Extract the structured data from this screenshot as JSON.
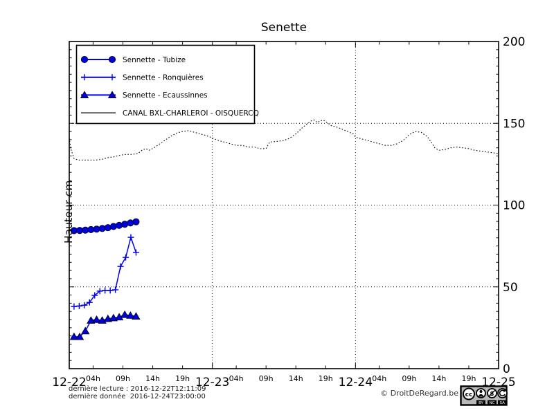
{
  "chart_data": {
    "type": "line",
    "title": "Senette",
    "ylabel": "Hauteur cm",
    "ylim": [
      0,
      200
    ],
    "xlim_hours": [
      0,
      72
    ],
    "yticks": [
      0,
      50,
      100,
      150,
      200
    ],
    "y_minor_step": 5,
    "grid": {
      "h_values": [
        50,
        100,
        150
      ],
      "v_hours": [
        24,
        48
      ],
      "style": "dotted"
    },
    "x_day_ticks": [
      {
        "h": 0,
        "label": "12-22"
      },
      {
        "h": 24,
        "label": "12-23"
      },
      {
        "h": 48,
        "label": "12-24"
      },
      {
        "h": 72,
        "label": "12-25"
      }
    ],
    "x_hour_ticks": [
      {
        "h": 4,
        "label": "04h"
      },
      {
        "h": 9,
        "label": "09h"
      },
      {
        "h": 14,
        "label": "14h"
      },
      {
        "h": 19,
        "label": "19h"
      },
      {
        "h": 28,
        "label": "04h"
      },
      {
        "h": 33,
        "label": "09h"
      },
      {
        "h": 38,
        "label": "14h"
      },
      {
        "h": 43,
        "label": "19h"
      },
      {
        "h": 52,
        "label": "04h"
      },
      {
        "h": 57,
        "label": "09h"
      },
      {
        "h": 62,
        "label": "14h"
      },
      {
        "h": 67,
        "label": "19h"
      }
    ],
    "legend_position": "upper-left",
    "colors": {
      "series_blue": "#0000dd",
      "line_blue": "#0000ee",
      "canal_black": "#000000"
    },
    "series": [
      {
        "id": "tubize",
        "name": "Sennette - Tubize",
        "marker": "circle",
        "color": "#0000dd",
        "line_style": "solid",
        "points": [
          [
            0.8,
            84.4
          ],
          [
            1.75,
            84.5
          ],
          [
            2.7,
            84.7
          ],
          [
            3.64,
            85.0
          ],
          [
            4.59,
            85.3
          ],
          [
            5.53,
            85.7
          ],
          [
            6.48,
            86.2
          ],
          [
            7.42,
            86.9
          ],
          [
            8.37,
            87.6
          ],
          [
            9.31,
            88.3
          ],
          [
            10.26,
            89.1
          ],
          [
            11.2,
            89.8
          ]
        ]
      },
      {
        "id": "ronquieres",
        "name": "Sennette - Ronquières",
        "marker": "plus",
        "color": "#0000dd",
        "line_style": "solid",
        "points": [
          [
            0.8,
            38.0
          ],
          [
            1.67,
            38.3
          ],
          [
            2.53,
            38.8
          ],
          [
            3.4,
            40.5
          ],
          [
            4.27,
            44.8
          ],
          [
            5.13,
            47.4
          ],
          [
            6.0,
            47.8
          ],
          [
            6.87,
            47.8
          ],
          [
            7.73,
            48.2
          ],
          [
            8.6,
            62.5
          ],
          [
            9.47,
            68.0
          ],
          [
            10.33,
            80.3
          ],
          [
            11.2,
            71.0
          ]
        ]
      },
      {
        "id": "ecaussinnes",
        "name": "Sennette - Ecaussinnes",
        "marker": "triangle",
        "color": "#0000dd",
        "line_style": "solid",
        "points": [
          [
            0.8,
            19.5
          ],
          [
            1.75,
            19.5
          ],
          [
            2.7,
            23.0
          ],
          [
            3.64,
            29.5
          ],
          [
            4.59,
            30.0
          ],
          [
            5.53,
            29.5
          ],
          [
            6.48,
            30.5
          ],
          [
            7.42,
            31.0
          ],
          [
            8.37,
            31.5
          ],
          [
            9.31,
            33.0
          ],
          [
            10.26,
            32.5
          ],
          [
            11.2,
            32.0
          ]
        ]
      },
      {
        "id": "canal",
        "name": "CANAL BXL-CHARLEROI  - OISQUERCQ",
        "marker": "none",
        "color": "#000000",
        "line_style": "dotted",
        "points": [
          [
            0,
            141
          ],
          [
            0.3,
            134
          ],
          [
            0.8,
            128.5
          ],
          [
            1.5,
            127.5
          ],
          [
            3,
            127.5
          ],
          [
            4.5,
            127.5
          ],
          [
            5.5,
            128
          ],
          [
            6.5,
            129
          ],
          [
            7.5,
            129.5
          ],
          [
            8.5,
            130.5
          ],
          [
            9.5,
            131
          ],
          [
            10.5,
            131
          ],
          [
            11.5,
            131.5
          ],
          [
            12.2,
            133.5
          ],
          [
            12.8,
            134.5
          ],
          [
            13.4,
            133.5
          ],
          [
            14.2,
            135
          ],
          [
            15,
            137
          ],
          [
            16,
            139.5
          ],
          [
            17,
            142
          ],
          [
            18,
            144
          ],
          [
            19,
            145
          ],
          [
            20,
            145.5
          ],
          [
            21,
            144.5
          ],
          [
            22,
            143.5
          ],
          [
            23,
            142.5
          ],
          [
            24,
            141
          ],
          [
            25,
            139.5
          ],
          [
            26,
            138.5
          ],
          [
            27,
            137.5
          ],
          [
            28,
            136.5
          ],
          [
            29,
            136.5
          ],
          [
            30,
            135.5
          ],
          [
            31,
            135.5
          ],
          [
            32,
            134.5
          ],
          [
            33,
            134.5
          ],
          [
            33.6,
            138.5
          ],
          [
            35,
            139
          ],
          [
            36,
            139.5
          ],
          [
            37,
            141
          ],
          [
            38,
            143.5
          ],
          [
            39,
            147
          ],
          [
            40,
            150
          ],
          [
            40.6,
            151.5
          ],
          [
            41.1,
            152
          ],
          [
            41.6,
            150.5
          ],
          [
            42.1,
            151.5
          ],
          [
            42.6,
            152
          ],
          [
            43.2,
            150.5
          ],
          [
            44,
            148.5
          ],
          [
            45,
            147.5
          ],
          [
            46,
            146
          ],
          [
            47,
            144.5
          ],
          [
            47.6,
            143.5
          ],
          [
            48,
            141.5
          ],
          [
            49,
            140.5
          ],
          [
            50,
            139.5
          ],
          [
            51,
            138.5
          ],
          [
            52,
            137.5
          ],
          [
            53,
            136.5
          ],
          [
            54,
            136.5
          ],
          [
            55,
            137.5
          ],
          [
            56,
            139.5
          ],
          [
            57,
            143
          ],
          [
            58,
            145
          ],
          [
            59,
            144.5
          ],
          [
            60,
            142
          ],
          [
            60.7,
            138.5
          ],
          [
            61.3,
            135
          ],
          [
            62,
            133.5
          ],
          [
            63,
            134
          ],
          [
            64,
            135
          ],
          [
            65,
            135.5
          ],
          [
            66,
            135
          ],
          [
            67,
            134.5
          ],
          [
            68,
            133.5
          ],
          [
            69,
            133
          ],
          [
            70,
            132.5
          ],
          [
            71,
            132
          ],
          [
            72,
            131.5
          ]
        ]
      }
    ]
  },
  "footer": {
    "line1": "dernière lecture : 2016-12-22T12:11:09",
    "line2": "dernière donnée  2016-12-24T23:00:00",
    "copyright": "© DroitDeRegard.be",
    "license": {
      "badge": "CC BY-NC-SA",
      "labels": [
        "BY",
        "NC",
        "SA"
      ]
    }
  }
}
